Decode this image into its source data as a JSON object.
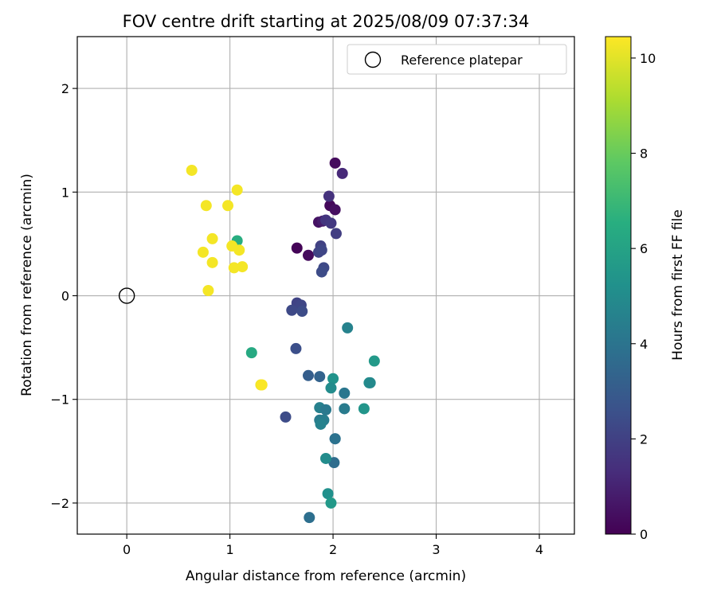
{
  "chart_data": {
    "type": "scatter",
    "title": "FOV centre drift starting at 2025/08/09 07:37:34",
    "xlabel": "Angular distance from reference (arcmin)",
    "ylabel": "Rotation from reference (arcmin)",
    "xlim": [
      -0.48,
      4.34
    ],
    "ylim": [
      -2.3,
      2.5
    ],
    "xticks": [
      0,
      1,
      2,
      3,
      4
    ],
    "xtick_labels": [
      "0",
      "1",
      "2",
      "3",
      "4"
    ],
    "yticks": [
      -2,
      -1,
      0,
      1,
      2
    ],
    "ytick_labels": [
      "−2",
      "−1",
      "0",
      "1",
      "2"
    ],
    "grid": true,
    "legend": {
      "placement": "top-right",
      "entries": [
        "Reference platepar"
      ]
    },
    "reference_point": {
      "x": 0,
      "y": 0,
      "label": "Reference platepar"
    },
    "colorbar": {
      "label": "Hours from first FF file",
      "range": [
        0,
        10.45
      ],
      "ticks": [
        0,
        2,
        4,
        6,
        8,
        10
      ],
      "tick_labels": [
        "0",
        "2",
        "4",
        "6",
        "8",
        "10"
      ],
      "colormap": "viridis"
    },
    "points": [
      {
        "x": 2.02,
        "y": 1.28,
        "c": 0.3
      },
      {
        "x": 1.65,
        "y": 0.46,
        "c": 0.1
      },
      {
        "x": 1.76,
        "y": 0.39,
        "c": 0.3
      },
      {
        "x": 1.86,
        "y": 0.71,
        "c": 0.5
      },
      {
        "x": 1.97,
        "y": 0.87,
        "c": 0.2
      },
      {
        "x": 2.02,
        "y": 0.83,
        "c": 0.4
      },
      {
        "x": 1.9,
        "y": 0.72,
        "c": 0.8
      },
      {
        "x": 2.09,
        "y": 1.18,
        "c": 1.2
      },
      {
        "x": 1.96,
        "y": 0.96,
        "c": 1.5
      },
      {
        "x": 1.93,
        "y": 0.73,
        "c": 1.6
      },
      {
        "x": 1.98,
        "y": 0.7,
        "c": 1.7
      },
      {
        "x": 2.03,
        "y": 0.6,
        "c": 1.9
      },
      {
        "x": 1.88,
        "y": 0.48,
        "c": 2.0
      },
      {
        "x": 1.86,
        "y": 0.42,
        "c": 2.1
      },
      {
        "x": 1.89,
        "y": 0.44,
        "c": 2.2
      },
      {
        "x": 1.91,
        "y": 0.27,
        "c": 2.3
      },
      {
        "x": 1.89,
        "y": 0.23,
        "c": 2.4
      },
      {
        "x": 1.65,
        "y": -0.07,
        "c": 2.1
      },
      {
        "x": 1.69,
        "y": -0.09,
        "c": 2.2
      },
      {
        "x": 1.6,
        "y": -0.14,
        "c": 2.3
      },
      {
        "x": 1.7,
        "y": -0.15,
        "c": 2.4
      },
      {
        "x": 1.64,
        "y": -0.51,
        "c": 2.5
      },
      {
        "x": 1.54,
        "y": -1.17,
        "c": 2.4
      },
      {
        "x": 1.76,
        "y": -0.77,
        "c": 3.1
      },
      {
        "x": 1.87,
        "y": -0.78,
        "c": 3.3
      },
      {
        "x": 2.14,
        "y": -0.31,
        "c": 4.6
      },
      {
        "x": 1.87,
        "y": -1.08,
        "c": 4.5
      },
      {
        "x": 1.93,
        "y": -1.1,
        "c": 4.2
      },
      {
        "x": 1.87,
        "y": -1.2,
        "c": 4.3
      },
      {
        "x": 1.91,
        "y": -1.2,
        "c": 4.4
      },
      {
        "x": 1.88,
        "y": -1.24,
        "c": 4.6
      },
      {
        "x": 2.02,
        "y": -1.38,
        "c": 3.6
      },
      {
        "x": 2.02,
        "y": -1.38,
        "c": 3.9
      },
      {
        "x": 2.11,
        "y": -0.94,
        "c": 4.1
      },
      {
        "x": 2.11,
        "y": -1.09,
        "c": 4.3
      },
      {
        "x": 2.01,
        "y": -1.61,
        "c": 3.7
      },
      {
        "x": 1.93,
        "y": -1.57,
        "c": 5.0
      },
      {
        "x": 1.95,
        "y": -1.91,
        "c": 5.2
      },
      {
        "x": 1.98,
        "y": -2.0,
        "c": 5.6
      },
      {
        "x": 1.77,
        "y": -2.14,
        "c": 3.8
      },
      {
        "x": 2.0,
        "y": -0.8,
        "c": 5.3
      },
      {
        "x": 1.98,
        "y": -0.89,
        "c": 5.0
      },
      {
        "x": 2.3,
        "y": -1.09,
        "c": 5.4
      },
      {
        "x": 2.35,
        "y": -0.84,
        "c": 5.1
      },
      {
        "x": 2.36,
        "y": -0.84,
        "c": 4.9
      },
      {
        "x": 2.4,
        "y": -0.63,
        "c": 5.6
      },
      {
        "x": 1.21,
        "y": -0.55,
        "c": 6.3
      },
      {
        "x": 1.07,
        "y": 0.53,
        "c": 6.5
      },
      {
        "x": 0.63,
        "y": 1.21,
        "c": 10.3
      },
      {
        "x": 1.07,
        "y": 1.02,
        "c": 10.3
      },
      {
        "x": 0.77,
        "y": 0.87,
        "c": 10.3
      },
      {
        "x": 0.98,
        "y": 0.87,
        "c": 10.3
      },
      {
        "x": 0.83,
        "y": 0.55,
        "c": 10.3
      },
      {
        "x": 1.02,
        "y": 0.48,
        "c": 10.3
      },
      {
        "x": 1.09,
        "y": 0.44,
        "c": 10.3
      },
      {
        "x": 0.74,
        "y": 0.42,
        "c": 10.3
      },
      {
        "x": 0.83,
        "y": 0.32,
        "c": 10.3
      },
      {
        "x": 1.04,
        "y": 0.27,
        "c": 10.3
      },
      {
        "x": 1.12,
        "y": 0.28,
        "c": 10.3
      },
      {
        "x": 0.79,
        "y": 0.05,
        "c": 10.3
      },
      {
        "x": 1.3,
        "y": -0.86,
        "c": 10.2
      },
      {
        "x": 1.31,
        "y": -0.86,
        "c": 10.4
      }
    ]
  }
}
